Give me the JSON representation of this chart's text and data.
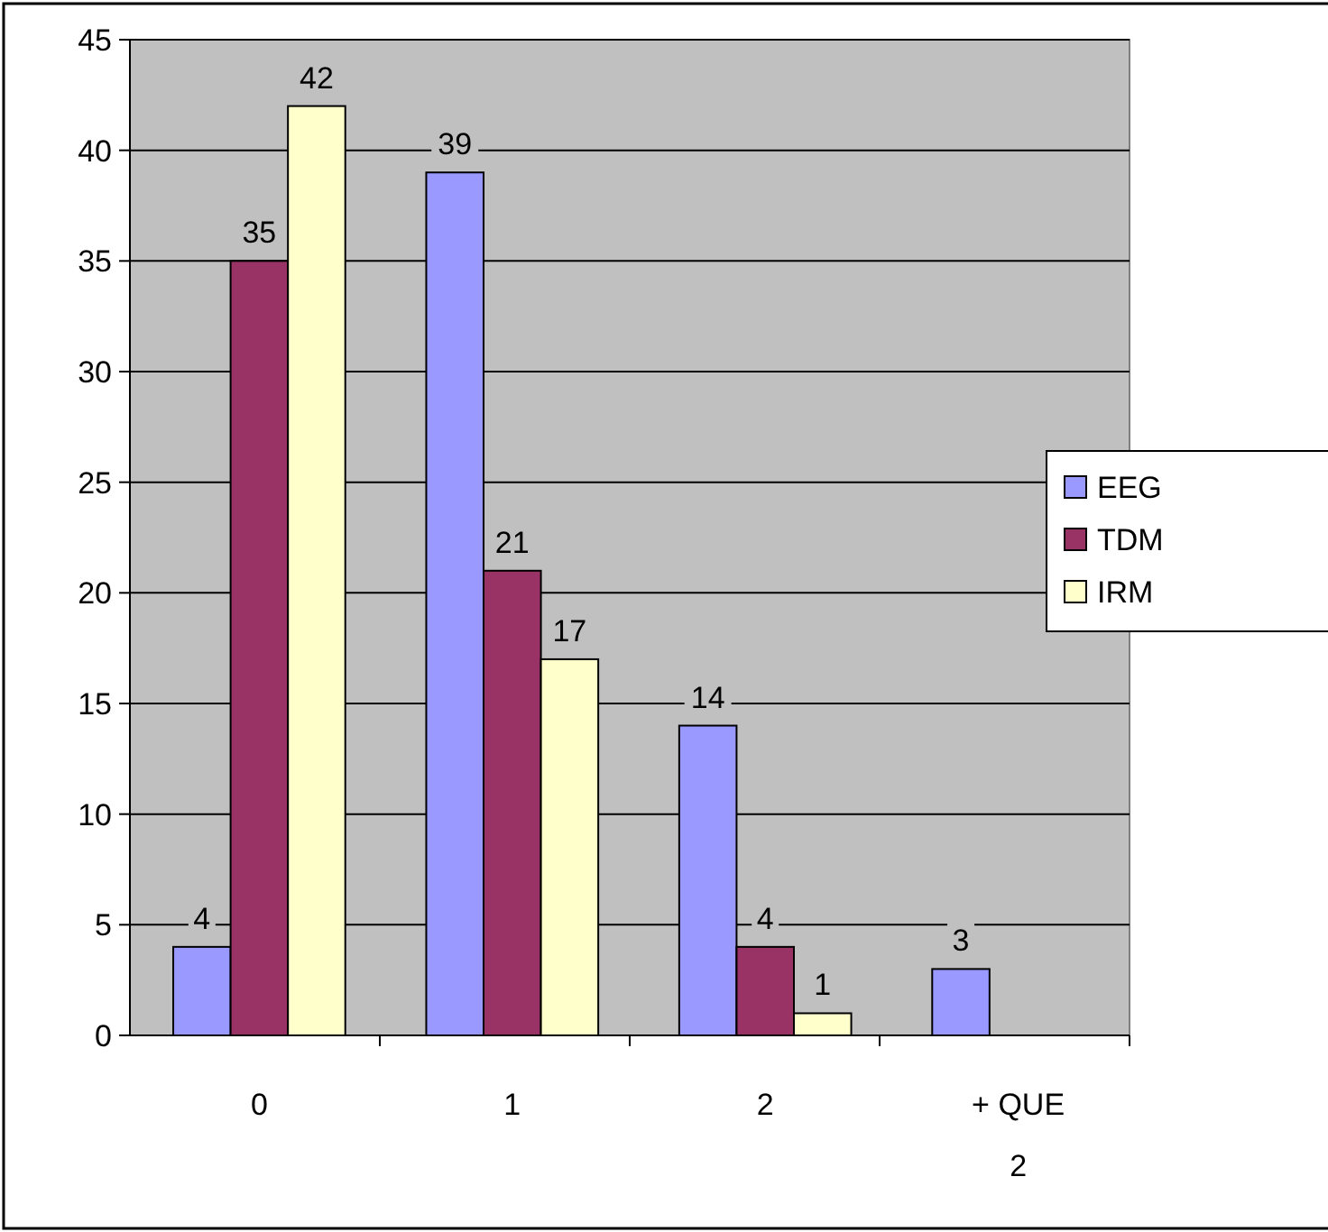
{
  "chart_data": {
    "type": "bar",
    "categories": [
      "0",
      "1",
      "2",
      "+ QUE 2"
    ],
    "series": [
      {
        "name": "EEG",
        "color": "#9999ff",
        "values": [
          4,
          39,
          14,
          3
        ]
      },
      {
        "name": "TDM",
        "color": "#993366",
        "values": [
          35,
          21,
          4,
          null
        ]
      },
      {
        "name": "IRM",
        "color": "#ffffcc",
        "values": [
          42,
          17,
          1,
          null
        ]
      }
    ],
    "ylim": [
      0,
      45
    ],
    "yticks": [
      0,
      5,
      10,
      15,
      20,
      25,
      30,
      35,
      40,
      45
    ],
    "grid": "y",
    "legend": "right",
    "data_labels": true
  }
}
